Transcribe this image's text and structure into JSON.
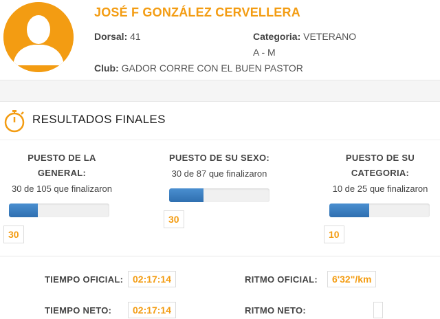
{
  "profile": {
    "name": "JOSÉ F GONZÁLEZ CERVELLERA",
    "dorsal_label": "Dorsal:",
    "dorsal_value": "41",
    "categoria_label": "Categoria:",
    "categoria_value": "VETERANO",
    "categoria_value2": "A - M",
    "club_label": "Club:",
    "club_value": "GADOR CORRE CON EL BUEN PASTOR"
  },
  "results": {
    "title": "RESULTADOS FINALES",
    "icon": "stopwatch-icon",
    "stats": [
      {
        "label_line1": "PUESTO DE LA",
        "label_line2": "GENERAL:",
        "sub": "30 de 105 que finalizaron",
        "position": "30",
        "fraction": 0.2857
      },
      {
        "label_line1": "PUESTO DE SU SEXO:",
        "label_line2": "",
        "sub": "30 de 87 que finalizaron",
        "position": "30",
        "fraction": 0.3448
      },
      {
        "label_line1": "PUESTO DE SU",
        "label_line2": "CATEGORIA:",
        "sub": "10 de 25 que finalizaron",
        "position": "10",
        "fraction": 0.4
      }
    ]
  },
  "times": {
    "tiempo_oficial_label": "TIEMPO OFICIAL:",
    "tiempo_oficial_value": "02:17:14",
    "ritmo_oficial_label": "RITMO OFICIAL:",
    "ritmo_oficial_value": "6'32\"/km",
    "tiempo_neto_label": "TIEMPO NETO:",
    "tiempo_neto_value": "02:17:14",
    "ritmo_neto_label": "RITMO NETO:",
    "ritmo_neto_value": ""
  },
  "colors": {
    "accent": "#f39c12",
    "bar_fill": "#3a7fc1"
  }
}
